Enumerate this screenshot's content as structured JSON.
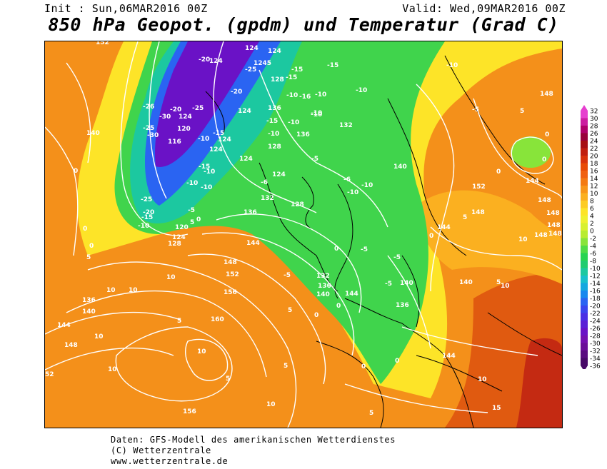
{
  "header": {
    "init": "Init : Sun,06MAR2016 00Z",
    "valid": "Valid: Wed,09MAR2016 00Z",
    "title": "850 hPa Geopot. (gpdm) und Temperatur (Grad C)"
  },
  "map": {
    "geopotential_contours_gpdm": [
      "116",
      "120",
      "124",
      "128",
      "132",
      "136",
      "140",
      "144",
      "148",
      "152",
      "156",
      "160"
    ],
    "temperature_contours_c": [
      "-30",
      "-25",
      "-20",
      "-15",
      "-10",
      "-5",
      "0",
      "5",
      "10",
      "15"
    ],
    "contour_color": "#ffffff",
    "coastline_color": "#000000"
  },
  "legend": {
    "ticks": [
      "32",
      "30",
      "28",
      "26",
      "24",
      "22",
      "20",
      "18",
      "16",
      "14",
      "12",
      "10",
      "8",
      "6",
      "4",
      "2",
      "0",
      "-2",
      "-4",
      "-6",
      "-8",
      "-10",
      "-12",
      "-14",
      "-16",
      "-18",
      "-20",
      "-22",
      "-24",
      "-26",
      "-28",
      "-30",
      "-32",
      "-34",
      "-36"
    ],
    "colors": [
      "#e63fcf",
      "#cc1ca0",
      "#b0006a",
      "#99003a",
      "#a60f14",
      "#c01f10",
      "#d8320c",
      "#e84a06",
      "#f06010",
      "#f47a12",
      "#f8961a",
      "#fbb020",
      "#fdcc22",
      "#fde428",
      "#f0f030",
      "#d8f030",
      "#b8ec30",
      "#88e43a",
      "#50dc46",
      "#28d450",
      "#20cc70",
      "#1cc8a0",
      "#18c0cc",
      "#14a8e0",
      "#1888ee",
      "#2a64f2",
      "#3a46ee",
      "#4a30e4",
      "#5a20d6",
      "#6a12c6",
      "#7410b0",
      "#6a0e98",
      "#5a0c80",
      "#480a68"
    ]
  },
  "credits": {
    "line1": "Daten: GFS-Modell des amerikanischen Wetterdienstes",
    "line2": "(C) Wetterzentrale",
    "line3": "www.wetterzentrale.de"
  }
}
